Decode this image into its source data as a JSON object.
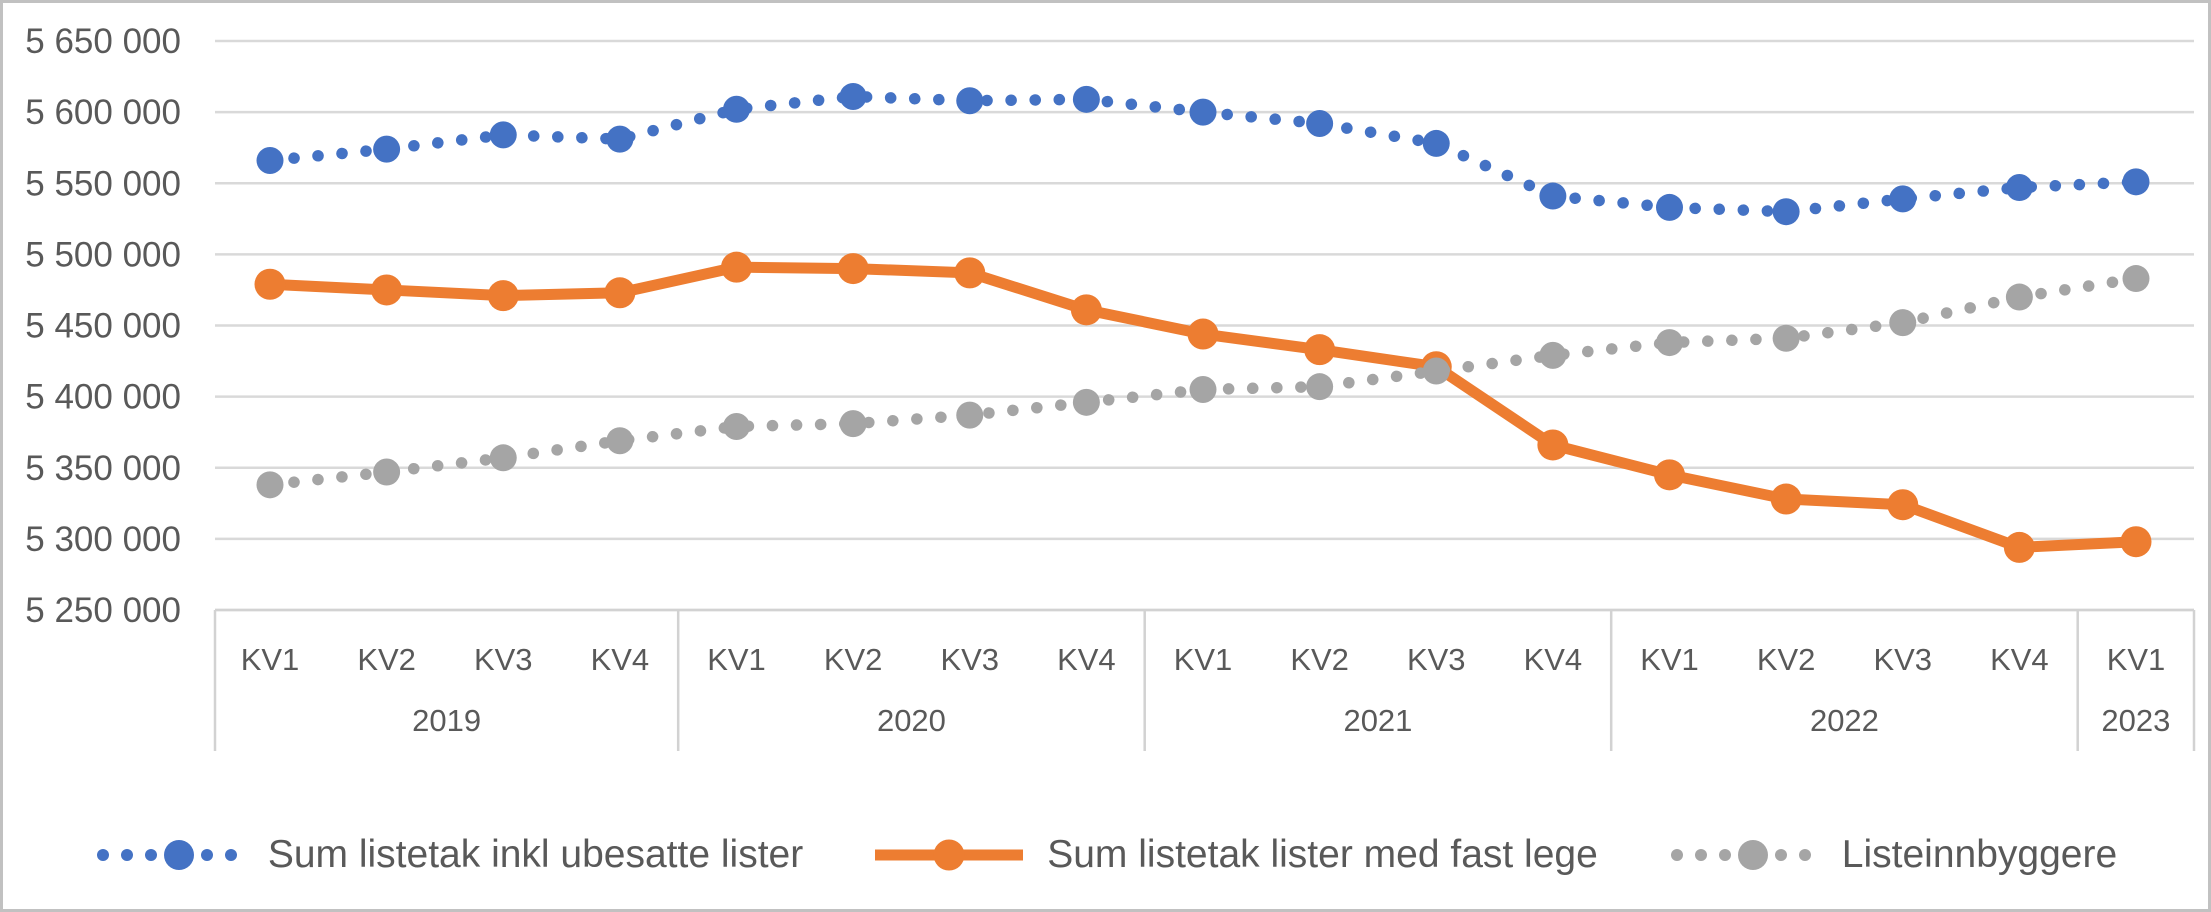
{
  "chart_data": {
    "type": "line",
    "title": "",
    "xlabel": "",
    "ylabel": "",
    "grid": true,
    "legend_position": "bottom",
    "quarter_labels": [
      "KV1",
      "KV2",
      "KV3",
      "KV4",
      "KV1",
      "KV2",
      "KV3",
      "KV4",
      "KV1",
      "KV2",
      "KV3",
      "KV4",
      "KV1",
      "KV2",
      "KV3",
      "KV4",
      "KV1"
    ],
    "year_groups": [
      {
        "label": "2019",
        "count": 4
      },
      {
        "label": "2020",
        "count": 4
      },
      {
        "label": "2021",
        "count": 4
      },
      {
        "label": "2022",
        "count": 4
      },
      {
        "label": "2023",
        "count": 1
      }
    ],
    "y_axis": {
      "min": 5250000,
      "max": 5650000,
      "step": 50000,
      "tick_labels": [
        "5 650 000",
        "5 600 000",
        "5 550 000",
        "5 500 000",
        "5 450 000",
        "5 400 000",
        "5 350 000",
        "5 300 000",
        "5 250 000"
      ]
    },
    "series": [
      {
        "name": "Sum listetak inkl ubesatte lister",
        "color": "#4472C4",
        "line_style": "dotted",
        "values": [
          5566000,
          5574000,
          5584000,
          5581000,
          5602000,
          5611000,
          5608000,
          5609000,
          5600000,
          5592000,
          5578000,
          5541000,
          5533000,
          5530000,
          5539000,
          5547000,
          5551000
        ]
      },
      {
        "name": "Sum listetak lister med fast lege",
        "color": "#ED7D31",
        "line_style": "solid",
        "values": [
          5479000,
          5475000,
          5471000,
          5473000,
          5491000,
          5490000,
          5487000,
          5461000,
          5444000,
          5433000,
          5421000,
          5366000,
          5345000,
          5328000,
          5324000,
          5294000,
          5298000
        ]
      },
      {
        "name": "Listeinnbyggere",
        "color": "#A5A5A5",
        "line_style": "dotted",
        "values": [
          5338000,
          5347000,
          5357000,
          5369000,
          5379000,
          5381000,
          5387000,
          5396000,
          5405000,
          5407000,
          5418000,
          5429000,
          5438000,
          5441000,
          5452000,
          5470000,
          5483000
        ]
      }
    ]
  }
}
